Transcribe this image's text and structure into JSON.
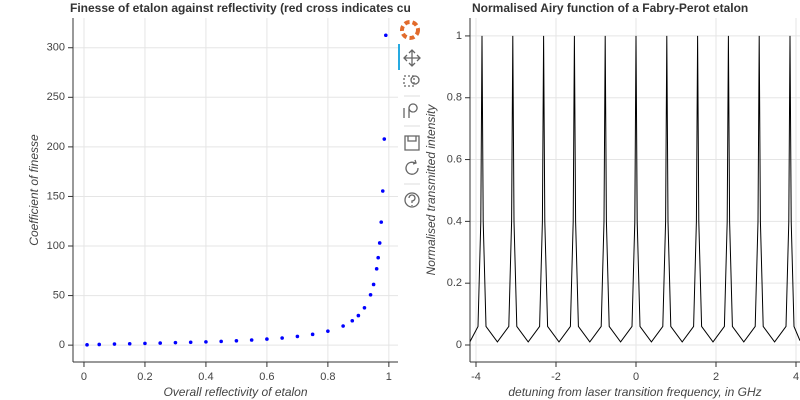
{
  "chart_data": [
    {
      "type": "scatter",
      "title": "Finesse of etalon against reflectivity (red cross indicates cu",
      "x_label": "Overall reflectivity of etalon",
      "y_label": "Coefficient of finesse",
      "x": [
        0.01,
        0.05,
        0.1,
        0.15,
        0.2,
        0.25,
        0.3,
        0.35,
        0.4,
        0.45,
        0.5,
        0.55,
        0.6,
        0.65,
        0.7,
        0.75,
        0.8,
        0.85,
        0.88,
        0.9,
        0.92,
        0.94,
        0.95,
        0.96,
        0.965,
        0.97,
        0.975,
        0.98,
        0.985,
        0.99
      ],
      "values": [
        0.3,
        0.7,
        1.1,
        1.4,
        1.8,
        2.1,
        2.5,
        2.9,
        3.3,
        3.8,
        4.4,
        5.2,
        6.1,
        7.2,
        8.8,
        10.9,
        14.1,
        19.3,
        24.6,
        29.8,
        37.7,
        50.8,
        61.2,
        77,
        88.2,
        103.1,
        124.1,
        155.5,
        207.9,
        312.6
      ],
      "color": "#0000ff",
      "xlim": [
        -0.036,
        1.03
      ],
      "ylim": [
        -17,
        330
      ],
      "xticks": [
        0,
        0.2,
        0.4,
        0.6,
        0.8,
        1
      ],
      "yticks": [
        0,
        50,
        100,
        150,
        200,
        250,
        300
      ],
      "grid": true
    },
    {
      "type": "line",
      "title": "Normalised Airy function of a Fabry-Perot etalon",
      "x_label": "detuning from laser transition frequency, in GHz",
      "y_label": "Normalised transmitted intensity",
      "x": [
        -4.15,
        -3.95,
        -3.88,
        -3.85,
        -3.82,
        -3.75,
        -3.465,
        -3.18,
        -3.11,
        -3.08,
        -3.05,
        -2.98,
        -2.695,
        -2.41,
        -2.34,
        -2.31,
        -2.28,
        -2.21,
        -1.925,
        -1.64,
        -1.57,
        -1.54,
        -1.51,
        -1.44,
        -1.155,
        -0.87,
        -0.8,
        -0.77,
        -0.74,
        -0.67,
        -0.385,
        -0.1,
        -0.03,
        0,
        0.03,
        0.1,
        0.385,
        0.67,
        0.74,
        0.77,
        0.8,
        0.87,
        1.155,
        1.44,
        1.51,
        1.54,
        1.57,
        1.64,
        1.925,
        2.21,
        2.28,
        2.31,
        2.34,
        2.41,
        2.695,
        2.98,
        3.05,
        3.08,
        3.11,
        3.18,
        3.465,
        3.75,
        3.82,
        3.85,
        3.88,
        3.95,
        4.1
      ],
      "values": [
        0.011,
        0.06,
        0.4,
        1,
        0.4,
        0.06,
        0.01,
        0.06,
        0.4,
        1,
        0.4,
        0.06,
        0.01,
        0.06,
        0.4,
        1,
        0.4,
        0.06,
        0.01,
        0.06,
        0.4,
        1,
        0.4,
        0.06,
        0.01,
        0.06,
        0.4,
        1,
        0.4,
        0.06,
        0.01,
        0.06,
        0.4,
        1,
        0.4,
        0.06,
        0.01,
        0.06,
        0.4,
        1,
        0.4,
        0.06,
        0.01,
        0.06,
        0.4,
        1,
        0.4,
        0.06,
        0.01,
        0.06,
        0.4,
        1,
        0.4,
        0.06,
        0.01,
        0.06,
        0.4,
        1,
        0.4,
        0.06,
        0.01,
        0.06,
        0.4,
        1,
        0.4,
        0.06,
        0.014
      ],
      "color": "#000000",
      "xlim": [
        -4.15,
        4.1
      ],
      "ylim": [
        -0.055,
        1.058
      ],
      "xticks": [
        -4,
        -2,
        0,
        2,
        4
      ],
      "yticks": [
        0,
        0.2,
        0.4,
        0.6,
        0.8,
        1
      ],
      "grid": true
    }
  ]
}
